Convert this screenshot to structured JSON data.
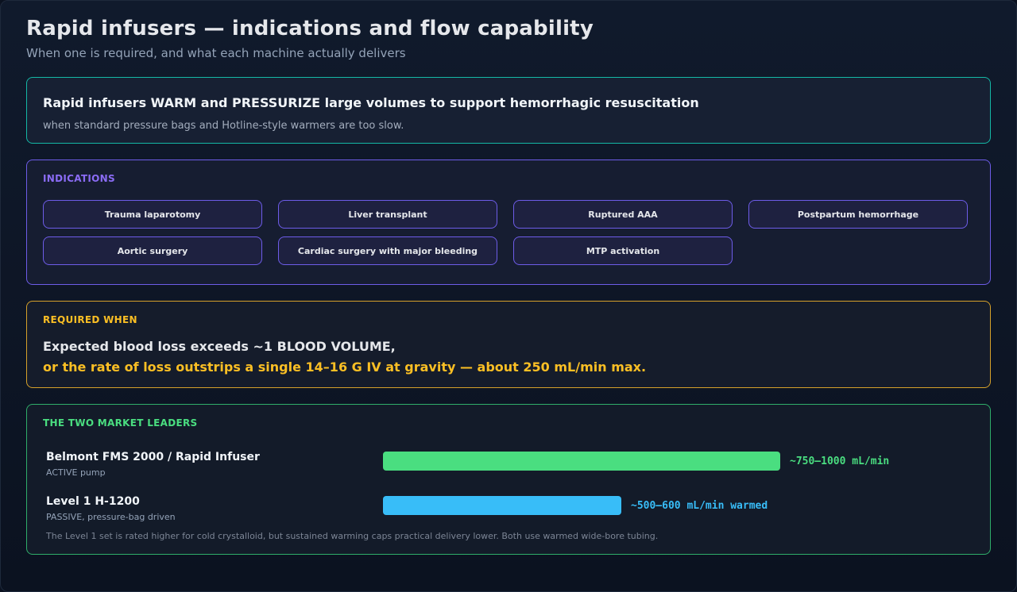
{
  "header": {
    "title": "Rapid infusers — indications and flow capability",
    "subtitle": "When one is required, and what each machine actually delivers"
  },
  "summary": {
    "headline": "Rapid infusers WARM and PRESSURIZE large volumes to support hemorrhagic resuscitation",
    "detail": "when standard pressure bags and Hotline-style warmers are too slow."
  },
  "indications": {
    "label": "INDICATIONS",
    "items": [
      "Trauma laparotomy",
      "Liver transplant",
      "Ruptured AAA",
      "Postpartum hemorrhage",
      "Aortic surgery",
      "Cardiac surgery with major bleeding",
      "MTP activation"
    ]
  },
  "required": {
    "label": "REQUIRED WHEN",
    "line1": "Expected blood loss exceeds ~1 BLOOD VOLUME,",
    "line2": "or the rate of loss outstrips a single 14–16 G IV at gravity — about 250 mL/min max."
  },
  "leaders": {
    "label": "THE TWO MARKET LEADERS",
    "note": "The Level 1 set is rated higher for cold crystalloid, but sustained warming caps practical delivery lower. Both use warmed wide-bore tubing."
  },
  "chart_data": {
    "type": "bar",
    "orientation": "horizontal",
    "unit": "mL/min",
    "categories": [
      "Belmont FMS 2000 / Rapid Infuser",
      "Level 1 H-1200"
    ],
    "subtitles": [
      "ACTIVE pump",
      "PASSIVE, pressure-bag driven"
    ],
    "ranges": [
      [
        750,
        1000
      ],
      [
        500,
        600
      ]
    ],
    "value_labels": [
      "~750–1000 mL/min",
      "~500–600 mL/min warmed"
    ],
    "colors": [
      "#4ade80",
      "#38bdf8"
    ],
    "xlim": [
      0,
      1000
    ]
  }
}
